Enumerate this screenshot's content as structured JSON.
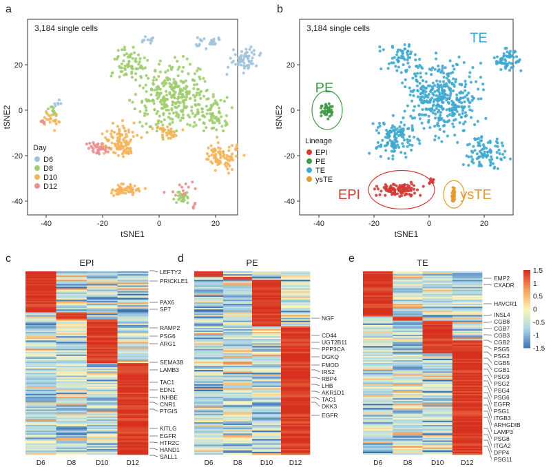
{
  "chart_data": [
    {
      "panel": "a",
      "type": "scatter",
      "annotation": "3,184 single cells",
      "xlabel": "tSNE1",
      "ylabel": "tSNE2",
      "xlim": [
        -45,
        35
      ],
      "ylim": [
        -45,
        37
      ],
      "xticks": [
        "-40",
        "-20",
        "0",
        "20"
      ],
      "yticks": [
        "20",
        "0",
        "-20",
        "-40"
      ],
      "legend": {
        "title": "Day",
        "position": "bottom-left",
        "entries": [
          "D6",
          "D8",
          "D10",
          "D12"
        ]
      },
      "colors": {
        "D6": "#9fc3dc",
        "D8": "#9fcd6e",
        "D10": "#f5b45a",
        "D12": "#ec8f8f"
      },
      "clusters": [
        {
          "group": "D6",
          "x": 30,
          "y": 22,
          "sx": 4,
          "sy": 4,
          "n": 60
        },
        {
          "group": "D6",
          "x": 17,
          "y": 30,
          "sx": 4,
          "sy": 2,
          "n": 25
        },
        {
          "group": "D6",
          "x": -4,
          "y": 31,
          "sx": 2,
          "sy": 2,
          "n": 10
        },
        {
          "group": "D6",
          "x": -36,
          "y": 3,
          "sx": 1,
          "sy": 2,
          "n": 6
        },
        {
          "group": "D8",
          "x": 5,
          "y": 5,
          "sx": 10,
          "sy": 12,
          "n": 300
        },
        {
          "group": "D8",
          "x": -10,
          "y": 20,
          "sx": 5,
          "sy": 7,
          "n": 70
        },
        {
          "group": "D8",
          "x": 20,
          "y": -2,
          "sx": 5,
          "sy": 6,
          "n": 60
        },
        {
          "group": "D8",
          "x": 8,
          "y": -38,
          "sx": 2,
          "sy": 2,
          "n": 25
        },
        {
          "group": "D8",
          "x": -38,
          "y": 0,
          "sx": 1.5,
          "sy": 2,
          "n": 12
        },
        {
          "group": "D10",
          "x": -14,
          "y": -14,
          "sx": 5,
          "sy": 6,
          "n": 110
        },
        {
          "group": "D10",
          "x": -12,
          "y": -35,
          "sx": 5,
          "sy": 2,
          "n": 60
        },
        {
          "group": "D10",
          "x": 22,
          "y": -20,
          "sx": 5,
          "sy": 5,
          "n": 80
        },
        {
          "group": "D10",
          "x": -38,
          "y": -4,
          "sx": 2,
          "sy": 3,
          "n": 20
        },
        {
          "group": "D10",
          "x": 3,
          "y": -10,
          "sx": 4,
          "sy": 3,
          "n": 30
        },
        {
          "group": "D12",
          "x": -22,
          "y": -17,
          "sx": 3,
          "sy": 2,
          "n": 40
        },
        {
          "group": "D12",
          "x": -41,
          "y": -5,
          "sx": 1,
          "sy": 1,
          "n": 6
        },
        {
          "group": "D12",
          "x": 8,
          "y": -34,
          "sx": 4,
          "sy": 3,
          "n": 12
        },
        {
          "group": "D12",
          "x": 12,
          "y": -42,
          "sx": 1,
          "sy": 1,
          "n": 5
        }
      ]
    },
    {
      "panel": "b",
      "type": "scatter",
      "annotation": "3,184 single cells",
      "xlabel": "tSNE1",
      "ylabel": "tSNE2",
      "xlim": [
        -45,
        35
      ],
      "ylim": [
        -45,
        37
      ],
      "xticks": [
        "-40",
        "-20",
        "0",
        "20"
      ],
      "yticks": [
        "20",
        "0",
        "-20",
        "-40"
      ],
      "legend": {
        "title": "Lineage",
        "position": "bottom-left",
        "entries": [
          "EPI",
          "PE",
          "TE",
          "ysTE"
        ]
      },
      "colors": {
        "EPI": "#d23b36",
        "PE": "#3f9a48",
        "TE": "#3fa9cf",
        "ysTE": "#e49a2f"
      },
      "cluster_labels": [
        {
          "text": "TE",
          "x": 18,
          "y": 32
        },
        {
          "text": "PE",
          "x": -38,
          "y": 10
        },
        {
          "text": "EPI",
          "x": -29,
          "y": -37
        },
        {
          "text": "ysTE",
          "x": 17,
          "y": -37
        }
      ],
      "clusters": [
        {
          "group": "TE",
          "x": 5,
          "y": 5,
          "sx": 11,
          "sy": 13,
          "n": 380
        },
        {
          "group": "TE",
          "x": -12,
          "y": -12,
          "sx": 6,
          "sy": 7,
          "n": 120
        },
        {
          "group": "TE",
          "x": 28,
          "y": 22,
          "sx": 4,
          "sy": 4,
          "n": 60
        },
        {
          "group": "TE",
          "x": 20,
          "y": -18,
          "sx": 6,
          "sy": 6,
          "n": 90
        },
        {
          "group": "TE",
          "x": -10,
          "y": 22,
          "sx": 5,
          "sy": 6,
          "n": 60
        },
        {
          "group": "PE",
          "x": -37,
          "y": 0,
          "sx": 2,
          "sy": 3,
          "n": 40
        },
        {
          "group": "EPI",
          "x": -11,
          "y": -35,
          "sx": 6,
          "sy": 2.2,
          "n": 110
        },
        {
          "group": "EPI",
          "x": 1,
          "y": -31,
          "sx": 1,
          "sy": 1,
          "n": 8
        },
        {
          "group": "ysTE",
          "x": 9,
          "y": -37,
          "sx": 0.6,
          "sy": 3,
          "n": 30
        }
      ]
    },
    {
      "panel": "c",
      "type": "heatmap",
      "title": "EPI",
      "columns": [
        "D6",
        "D8",
        "D10",
        "D12"
      ],
      "high_blocks": [
        {
          "col": 0,
          "from": 0,
          "to": 0.22
        },
        {
          "col": 1,
          "from": 0.22,
          "to": 0.26
        },
        {
          "col": 2,
          "from": 0.26,
          "to": 0.5
        },
        {
          "col": 3,
          "from": 0.5,
          "to": 1
        }
      ],
      "genes": [
        "LEFTY2",
        "PRICKLE1",
        "PAX6",
        "SP7",
        "RAMP2",
        "PSG6",
        "ARG1",
        "SEMA3B",
        "LAMB3",
        "TAC1",
        "EDN1",
        "INHBE",
        "CNR1",
        "PTGIS",
        "KITLG",
        "EGFR",
        "HTR2C",
        "HAND1",
        "SALL1"
      ]
    },
    {
      "panel": "d",
      "type": "heatmap",
      "title": "PE",
      "columns": [
        "D6",
        "D8",
        "D10",
        "D12"
      ],
      "high_blocks": [
        {
          "col": 0,
          "from": 0,
          "to": 0.03
        },
        {
          "col": 1,
          "from": 0.03,
          "to": 0.05
        },
        {
          "col": 2,
          "from": 0.05,
          "to": 0.3
        },
        {
          "col": 3,
          "from": 0.3,
          "to": 1
        }
      ],
      "genes": [
        "NGF",
        "CD44",
        "UGT2B11",
        "PPP3CA",
        "DGKQ",
        "FMOD",
        "IRS2",
        "RBP4",
        "LHB",
        "AKR1D1",
        "TAC1",
        "DKK3",
        "EGFR"
      ]
    },
    {
      "panel": "e",
      "type": "heatmap",
      "title": "TE",
      "columns": [
        "D6",
        "D8",
        "D10",
        "D12"
      ],
      "high_blocks": [
        {
          "col": 0,
          "from": 0,
          "to": 0.25
        },
        {
          "col": 1,
          "from": 0.25,
          "to": 0.27
        },
        {
          "col": 2,
          "from": 0.27,
          "to": 0.45
        },
        {
          "col": 3,
          "from": 0.38,
          "to": 1
        }
      ],
      "genes": [
        "EMP2",
        "CXADR",
        "HAVCR1",
        "INSL4",
        "CGB8",
        "CGB7",
        "CGB3",
        "CGB2",
        "PSG5",
        "PSG3",
        "CGB5",
        "CGB1",
        "PSG9",
        "PSG2",
        "PSG4",
        "PSG6",
        "EGFR",
        "PSG1",
        "ITGB3",
        "ARHGDIB",
        "LAMP3",
        "PSG8",
        "ITGA2",
        "DPP4",
        "PSG11"
      ],
      "colorbar": {
        "ticks": [
          "1.5",
          "1",
          "0.5",
          "0",
          "-0.5",
          "-1",
          "-1.5"
        ],
        "range": [
          -1.5,
          1.5
        ],
        "colors": [
          "#3a6fb0",
          "#fdf5b8",
          "#d7301f"
        ]
      }
    }
  ],
  "panel_letters": [
    "a",
    "b",
    "c",
    "d",
    "e"
  ]
}
